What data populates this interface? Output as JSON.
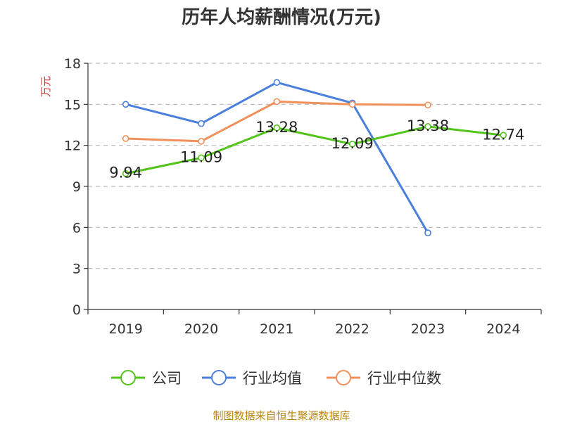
{
  "colors": {
    "company": "#52c41a",
    "industry_avg": "#4a7fdb",
    "industry_median": "#f0905a",
    "axis": "#333333",
    "grid": "#bbbbbb",
    "ylabel": "#e03030",
    "source": "#b8860b"
  },
  "chart_data": {
    "type": "line",
    "title": "历年人均薪酬情况(万元)",
    "ylabel": "万元",
    "xlabel": "",
    "ylim": [
      0,
      18
    ],
    "yticks": [
      0,
      3,
      6,
      9,
      12,
      15,
      18
    ],
    "categories": [
      "2019",
      "2020",
      "2021",
      "2022",
      "2023",
      "2024"
    ],
    "grid": "horizontal dashed",
    "legend_position": "bottom",
    "series": [
      {
        "name": "公司",
        "color_key": "company",
        "values": [
          9.94,
          11.09,
          13.28,
          12.09,
          13.38,
          12.74
        ],
        "data_labels": [
          "9.94",
          "11.09",
          "13.28",
          "12.09",
          "13.38",
          "12.74"
        ]
      },
      {
        "name": "行业均值",
        "color_key": "industry_avg",
        "values": [
          15.0,
          13.6,
          16.6,
          15.1,
          5.6,
          null
        ]
      },
      {
        "name": "行业中位数",
        "color_key": "industry_median",
        "values": [
          12.5,
          12.3,
          15.2,
          15.0,
          14.95,
          null
        ]
      }
    ],
    "source": "制图数据来自恒生聚源数据库"
  }
}
